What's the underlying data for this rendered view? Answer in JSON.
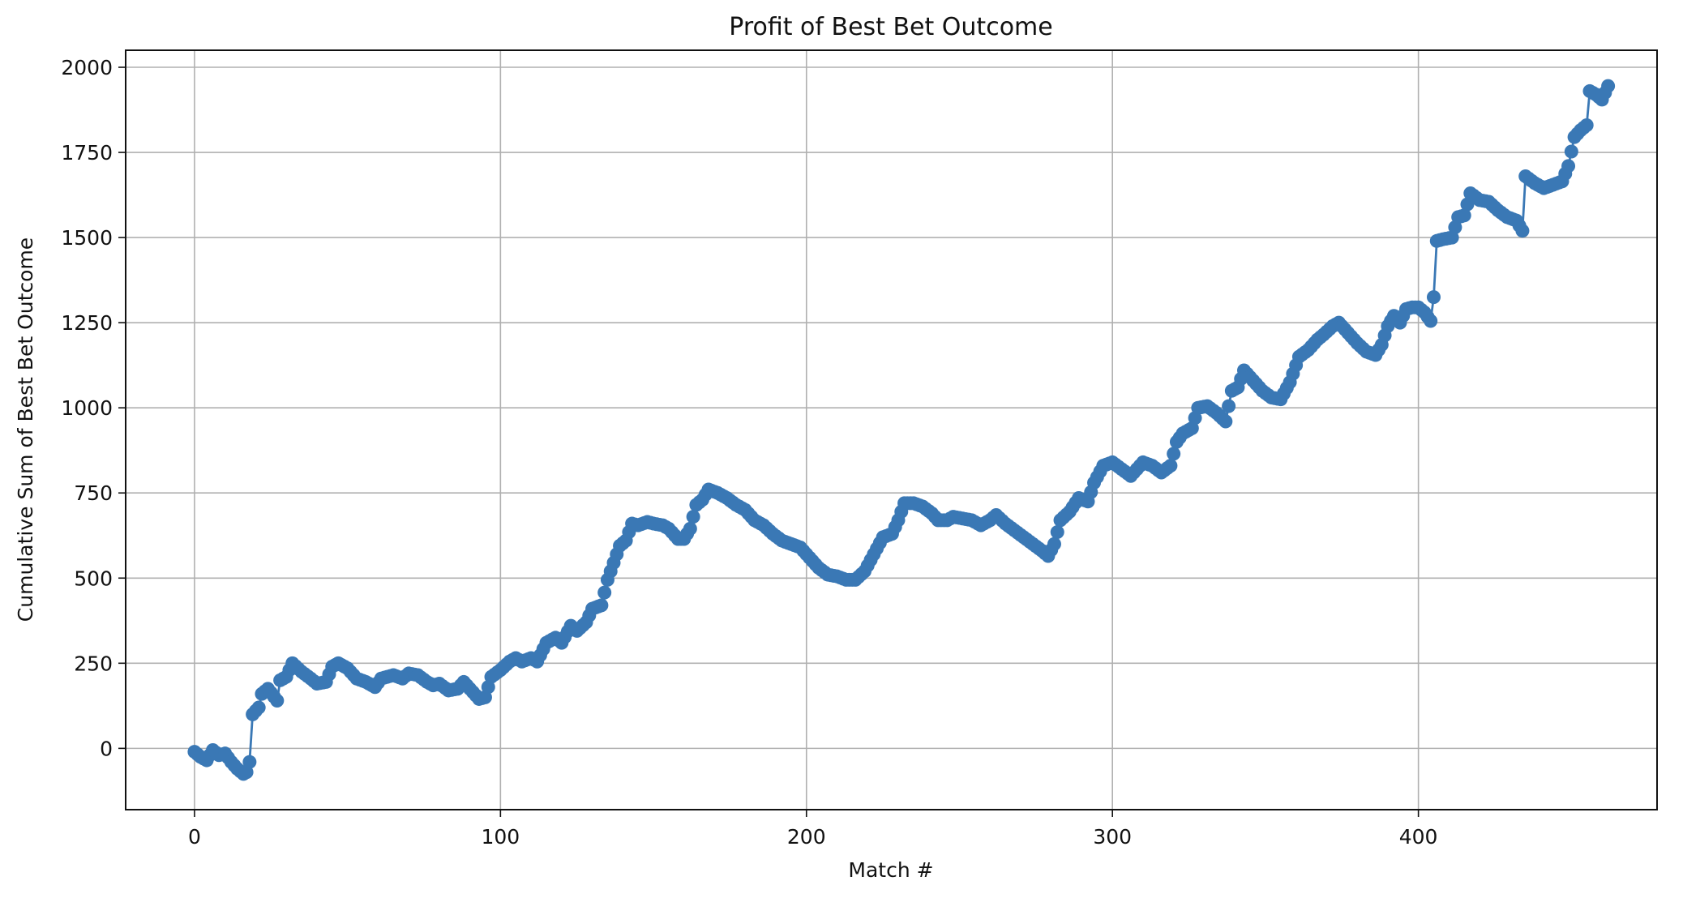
{
  "chart_data": {
    "type": "line",
    "title": "Profit of Best Bet Outcome",
    "xlabel": "Match #",
    "ylabel": "Cumulative Sum of Best Bet Outcome",
    "xlim": [
      -22.5,
      478
    ],
    "ylim": [
      -180,
      2050
    ],
    "xticks": [
      0,
      100,
      200,
      300,
      400
    ],
    "yticks": [
      0,
      250,
      500,
      750,
      1000,
      1250,
      1500,
      1750,
      2000
    ],
    "grid": true,
    "markers": true,
    "color": "#3a78b5",
    "series": [
      {
        "anchors": [
          [
            0,
            -10
          ],
          [
            2,
            -25
          ],
          [
            4,
            -35
          ],
          [
            6,
            -5
          ],
          [
            8,
            -20
          ],
          [
            10,
            -15
          ],
          [
            12,
            -40
          ],
          [
            14,
            -60
          ],
          [
            16,
            -75
          ],
          [
            17,
            -70
          ],
          [
            18,
            -40
          ],
          [
            19,
            100
          ],
          [
            21,
            120
          ],
          [
            22,
            160
          ],
          [
            24,
            175
          ],
          [
            27,
            140
          ],
          [
            28,
            200
          ],
          [
            30,
            210
          ],
          [
            32,
            250
          ],
          [
            35,
            225
          ],
          [
            38,
            205
          ],
          [
            40,
            190
          ],
          [
            43,
            195
          ],
          [
            45,
            240
          ],
          [
            47,
            250
          ],
          [
            50,
            235
          ],
          [
            53,
            205
          ],
          [
            56,
            195
          ],
          [
            59,
            180
          ],
          [
            61,
            205
          ],
          [
            65,
            215
          ],
          [
            68,
            205
          ],
          [
            70,
            220
          ],
          [
            73,
            215
          ],
          [
            76,
            195
          ],
          [
            78,
            185
          ],
          [
            80,
            190
          ],
          [
            83,
            170
          ],
          [
            86,
            175
          ],
          [
            88,
            195
          ],
          [
            90,
            175
          ],
          [
            93,
            145
          ],
          [
            95,
            150
          ],
          [
            97,
            210
          ],
          [
            100,
            230
          ],
          [
            103,
            255
          ],
          [
            105,
            265
          ],
          [
            107,
            255
          ],
          [
            110,
            265
          ],
          [
            112,
            255
          ],
          [
            115,
            310
          ],
          [
            118,
            325
          ],
          [
            120,
            310
          ],
          [
            123,
            360
          ],
          [
            125,
            345
          ],
          [
            128,
            370
          ],
          [
            130,
            410
          ],
          [
            133,
            420
          ],
          [
            135,
            495
          ],
          [
            137,
            545
          ],
          [
            139,
            595
          ],
          [
            141,
            610
          ],
          [
            143,
            660
          ],
          [
            145,
            655
          ],
          [
            148,
            665
          ],
          [
            150,
            660
          ],
          [
            153,
            655
          ],
          [
            155,
            645
          ],
          [
            158,
            615
          ],
          [
            160,
            615
          ],
          [
            162,
            645
          ],
          [
            164,
            715
          ],
          [
            166,
            730
          ],
          [
            168,
            760
          ],
          [
            171,
            750
          ],
          [
            174,
            735
          ],
          [
            177,
            715
          ],
          [
            180,
            700
          ],
          [
            183,
            670
          ],
          [
            186,
            655
          ],
          [
            189,
            630
          ],
          [
            192,
            610
          ],
          [
            195,
            600
          ],
          [
            198,
            590
          ],
          [
            201,
            560
          ],
          [
            204,
            530
          ],
          [
            207,
            510
          ],
          [
            210,
            505
          ],
          [
            213,
            495
          ],
          [
            216,
            495
          ],
          [
            219,
            520
          ],
          [
            222,
            570
          ],
          [
            225,
            620
          ],
          [
            228,
            630
          ],
          [
            230,
            670
          ],
          [
            232,
            720
          ],
          [
            235,
            720
          ],
          [
            238,
            710
          ],
          [
            241,
            690
          ],
          [
            243,
            670
          ],
          [
            246,
            670
          ],
          [
            248,
            680
          ],
          [
            251,
            675
          ],
          [
            254,
            670
          ],
          [
            257,
            655
          ],
          [
            260,
            670
          ],
          [
            262,
            685
          ],
          [
            265,
            660
          ],
          [
            268,
            640
          ],
          [
            271,
            620
          ],
          [
            274,
            600
          ],
          [
            277,
            580
          ],
          [
            279,
            565
          ],
          [
            281,
            600
          ],
          [
            283,
            670
          ],
          [
            286,
            695
          ],
          [
            289,
            735
          ],
          [
            292,
            725
          ],
          [
            294,
            780
          ],
          [
            297,
            830
          ],
          [
            300,
            840
          ],
          [
            303,
            820
          ],
          [
            306,
            800
          ],
          [
            308,
            820
          ],
          [
            310,
            840
          ],
          [
            313,
            830
          ],
          [
            316,
            810
          ],
          [
            319,
            830
          ],
          [
            321,
            900
          ],
          [
            323,
            925
          ],
          [
            326,
            940
          ],
          [
            328,
            1000
          ],
          [
            331,
            1005
          ],
          [
            334,
            985
          ],
          [
            337,
            960
          ],
          [
            339,
            1050
          ],
          [
            341,
            1060
          ],
          [
            343,
            1110
          ],
          [
            346,
            1080
          ],
          [
            349,
            1050
          ],
          [
            352,
            1030
          ],
          [
            355,
            1025
          ],
          [
            358,
            1075
          ],
          [
            361,
            1150
          ],
          [
            364,
            1170
          ],
          [
            367,
            1200
          ],
          [
            369,
            1215
          ],
          [
            372,
            1240
          ],
          [
            374,
            1250
          ],
          [
            377,
            1220
          ],
          [
            380,
            1190
          ],
          [
            383,
            1165
          ],
          [
            386,
            1155
          ],
          [
            388,
            1185
          ],
          [
            390,
            1240
          ],
          [
            392,
            1270
          ],
          [
            394,
            1250
          ],
          [
            396,
            1290
          ],
          [
            398,
            1295
          ],
          [
            400,
            1295
          ],
          [
            402,
            1280
          ],
          [
            404,
            1255
          ],
          [
            405,
            1325
          ],
          [
            406,
            1490
          ],
          [
            408,
            1495
          ],
          [
            411,
            1500
          ],
          [
            413,
            1560
          ],
          [
            415,
            1565
          ],
          [
            417,
            1630
          ],
          [
            420,
            1610
          ],
          [
            423,
            1605
          ],
          [
            426,
            1580
          ],
          [
            429,
            1560
          ],
          [
            432,
            1550
          ],
          [
            434,
            1520
          ],
          [
            435,
            1680
          ],
          [
            438,
            1660
          ],
          [
            441,
            1645
          ],
          [
            444,
            1655
          ],
          [
            447,
            1665
          ],
          [
            449,
            1710
          ],
          [
            451,
            1795
          ],
          [
            453,
            1815
          ],
          [
            455,
            1830
          ],
          [
            456,
            1930
          ],
          [
            458,
            1920
          ],
          [
            460,
            1905
          ],
          [
            462,
            1945
          ]
        ]
      }
    ]
  }
}
